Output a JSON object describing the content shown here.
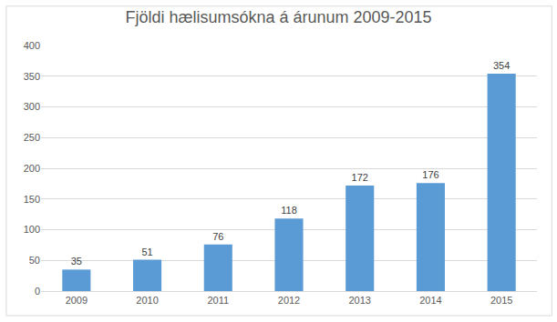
{
  "chart_data": {
    "type": "bar",
    "title": "Fjöldi hælisumsókna á árunum 2009-2015",
    "categories": [
      "2009",
      "2010",
      "2011",
      "2012",
      "2013",
      "2014",
      "2015"
    ],
    "values": [
      35,
      51,
      76,
      118,
      172,
      176,
      354
    ],
    "color": "#5b9bd5",
    "ylim": [
      0,
      400
    ],
    "yticks": [
      0,
      50,
      100,
      150,
      200,
      250,
      300,
      350,
      400
    ],
    "grid": true,
    "data_labels": true
  }
}
